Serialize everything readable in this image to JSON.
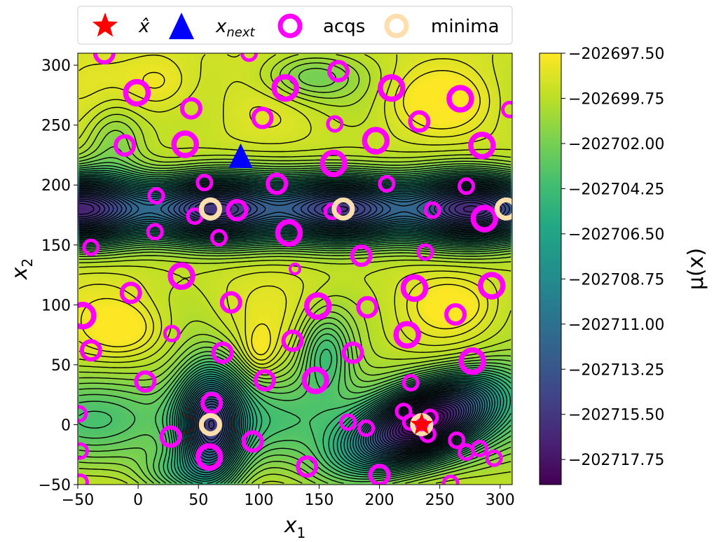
{
  "chart_data": {
    "type": "scatter",
    "background": "contour",
    "xlabel_var": "x",
    "xlabel_sub": "1",
    "ylabel_var": "x",
    "ylabel_sub": "2",
    "xlim": [
      -50,
      310
    ],
    "ylim": [
      -50,
      310
    ],
    "xticks": [
      -50,
      0,
      50,
      100,
      150,
      200,
      250,
      300
    ],
    "yticks": [
      -50,
      0,
      50,
      100,
      150,
      200,
      250,
      300
    ],
    "xtick_labels": [
      "−50",
      "0",
      "50",
      "100",
      "150",
      "200",
      "250",
      "300"
    ],
    "ytick_labels": [
      "−50",
      "0",
      "50",
      "100",
      "150",
      "200",
      "250",
      "300"
    ],
    "legend": {
      "placement": "top-center",
      "entries": [
        {
          "key": "xhat",
          "label": "x̂",
          "marker": "star",
          "color": "#ff0000"
        },
        {
          "key": "xnext",
          "label_var": "x",
          "label_sub": "next",
          "marker": "triangle",
          "color": "#0000ff"
        },
        {
          "key": "acqs",
          "label": "acqs",
          "marker": "ring",
          "color": "#ff00ff"
        },
        {
          "key": "minima",
          "label": "minima",
          "marker": "ring",
          "color": "#ffdead"
        }
      ]
    },
    "colorbar": {
      "label_fn": "μ(x)",
      "min": -202719.0,
      "max": -202697.5,
      "ticks": [
        -202697.5,
        -202699.75,
        -202702.0,
        -202704.25,
        -202706.5,
        -202708.75,
        -202711.0,
        -202713.25,
        -202715.5,
        -202717.75
      ],
      "tick_labels": [
        "−202697.50",
        "−202699.75",
        "−202702.00",
        "−202704.25",
        "−202706.50",
        "−202708.75",
        "−202711.00",
        "−202713.25",
        "−202715.50",
        "−202717.75"
      ]
    },
    "xhat": {
      "x": 235,
      "y": 0
    },
    "xnext": {
      "x": 85,
      "y": 223
    },
    "minima": [
      {
        "x": 60,
        "y": 180
      },
      {
        "x": 170,
        "y": 180
      },
      {
        "x": 305,
        "y": 180
      },
      {
        "x": 60,
        "y": 0
      },
      {
        "x": 235,
        "y": 0
      }
    ],
    "acqs": [
      {
        "x": -28,
        "y": 310,
        "s": "l"
      },
      {
        "x": 92,
        "y": 310,
        "s": "m"
      },
      {
        "x": 166,
        "y": 295,
        "s": "l"
      },
      {
        "x": -1,
        "y": 277,
        "s": "xl"
      },
      {
        "x": 122,
        "y": 281,
        "s": "xl"
      },
      {
        "x": 210,
        "y": 281,
        "s": "xl"
      },
      {
        "x": 267,
        "y": 272,
        "s": "xl"
      },
      {
        "x": 44,
        "y": 264,
        "s": "l"
      },
      {
        "x": 103,
        "y": 256,
        "s": "l"
      },
      {
        "x": 163,
        "y": 251,
        "s": "m"
      },
      {
        "x": 233,
        "y": 253,
        "s": "l"
      },
      {
        "x": 308,
        "y": 263,
        "s": "m"
      },
      {
        "x": -11,
        "y": 233,
        "s": "l"
      },
      {
        "x": 39,
        "y": 234,
        "s": "xl"
      },
      {
        "x": 197,
        "y": 237,
        "s": "xl"
      },
      {
        "x": 285,
        "y": 233,
        "s": "xl"
      },
      {
        "x": 162,
        "y": 218,
        "s": "xl"
      },
      {
        "x": 55,
        "y": 202,
        "s": "m"
      },
      {
        "x": 115,
        "y": 201,
        "s": "l"
      },
      {
        "x": 206,
        "y": 201,
        "s": "m"
      },
      {
        "x": 272,
        "y": 199,
        "s": "m"
      },
      {
        "x": 15,
        "y": 191,
        "s": "m"
      },
      {
        "x": 82,
        "y": 179,
        "s": "l"
      },
      {
        "x": 161,
        "y": 178,
        "s": "m"
      },
      {
        "x": 244,
        "y": 179,
        "s": "m"
      },
      {
        "x": 47,
        "y": 174,
        "s": "m"
      },
      {
        "x": 287,
        "y": 172,
        "s": "xl"
      },
      {
        "x": 14,
        "y": 161,
        "s": "m"
      },
      {
        "x": 125,
        "y": 160,
        "s": "xl"
      },
      {
        "x": 67,
        "y": 156,
        "s": "m"
      },
      {
        "x": -39,
        "y": 148,
        "s": "m"
      },
      {
        "x": 238,
        "y": 144,
        "s": "m"
      },
      {
        "x": 185,
        "y": 141,
        "s": "l"
      },
      {
        "x": 130,
        "y": 130,
        "s": "s"
      },
      {
        "x": 36,
        "y": 124,
        "s": "xl"
      },
      {
        "x": 229,
        "y": 114,
        "s": "xl"
      },
      {
        "x": 293,
        "y": 116,
        "s": "xl"
      },
      {
        "x": -6,
        "y": 110,
        "s": "l"
      },
      {
        "x": 77,
        "y": 102,
        "s": "l"
      },
      {
        "x": 149,
        "y": 99,
        "s": "xl"
      },
      {
        "x": 190,
        "y": 98,
        "s": "l"
      },
      {
        "x": -46,
        "y": 91,
        "s": "xl"
      },
      {
        "x": 263,
        "y": 92,
        "s": "l"
      },
      {
        "x": 28,
        "y": 76,
        "s": "m"
      },
      {
        "x": 223,
        "y": 75,
        "s": "xl"
      },
      {
        "x": 128,
        "y": 70,
        "s": "l"
      },
      {
        "x": -39,
        "y": 62,
        "s": "l"
      },
      {
        "x": 70,
        "y": 60,
        "s": "l"
      },
      {
        "x": 178,
        "y": 60,
        "s": "l"
      },
      {
        "x": 277,
        "y": 53,
        "s": "xl"
      },
      {
        "x": 6,
        "y": 36,
        "s": "l"
      },
      {
        "x": 105,
        "y": 37,
        "s": "l"
      },
      {
        "x": 147,
        "y": 37,
        "s": "xl"
      },
      {
        "x": 226,
        "y": 35,
        "s": "m"
      },
      {
        "x": 61,
        "y": 18,
        "s": "l"
      },
      {
        "x": 220,
        "y": 11,
        "s": "m"
      },
      {
        "x": 242,
        "y": 6,
        "s": "m"
      },
      {
        "x": -49,
        "y": 9,
        "s": "m"
      },
      {
        "x": 174,
        "y": 2,
        "s": "m"
      },
      {
        "x": 226,
        "y": 2,
        "s": "m"
      },
      {
        "x": 189,
        "y": -3,
        "s": "m"
      },
      {
        "x": 240,
        "y": -8,
        "s": "m"
      },
      {
        "x": 27,
        "y": -10,
        "s": "l"
      },
      {
        "x": 95,
        "y": -14,
        "s": "l"
      },
      {
        "x": 264,
        "y": -13,
        "s": "m"
      },
      {
        "x": -48,
        "y": -22,
        "s": "m"
      },
      {
        "x": 283,
        "y": -20,
        "s": "m"
      },
      {
        "x": 272,
        "y": -23,
        "s": "m"
      },
      {
        "x": 59,
        "y": -27,
        "s": "xl"
      },
      {
        "x": 295,
        "y": -28,
        "s": "m"
      },
      {
        "x": 140,
        "y": -35,
        "s": "l"
      },
      {
        "x": 200,
        "y": -42,
        "s": "l"
      },
      {
        "x": -48,
        "y": -48,
        "s": "m"
      },
      {
        "x": 259,
        "y": -49,
        "s": "m"
      }
    ],
    "surface": {
      "base": -202699.0,
      "bands": [
        {
          "center_y": 180,
          "width": 27,
          "depth": 15.0,
          "wx": 55,
          "var": 3.0
        },
        {
          "center_y": 5,
          "width": 40,
          "depth": 4.0,
          "wx": 0,
          "var": 0
        }
      ],
      "wells": [
        {
          "x": 60,
          "y": -2,
          "sx": 26,
          "sy": 48,
          "rot": 0,
          "depth": 13.0
        },
        {
          "x": 233,
          "y": 0,
          "sx": 65,
          "sy": 27,
          "rot": -0.42,
          "depth": 16.0
        },
        {
          "x": 155,
          "y": 60,
          "sx": 22,
          "sy": 34,
          "rot": 0,
          "depth": 4.5
        },
        {
          "x": 30,
          "y": -40,
          "sx": 30,
          "sy": 18,
          "rot": 0,
          "depth": 3.0
        },
        {
          "x": 140,
          "y": 290,
          "sx": 40,
          "sy": 20,
          "rot": 0,
          "depth": 3.0
        },
        {
          "x": -20,
          "y": 240,
          "sx": 25,
          "sy": 30,
          "rot": 0,
          "depth": 2.5
        }
      ],
      "bumps": [
        {
          "x": -10,
          "y": 80,
          "sx": 30,
          "sy": 22,
          "h": 1.8
        },
        {
          "x": 100,
          "y": 60,
          "sx": 14,
          "sy": 20,
          "h": 1.6
        },
        {
          "x": 20,
          "y": 285,
          "sx": 30,
          "sy": 25,
          "h": 1.6
        },
        {
          "x": 250,
          "y": 270,
          "sx": 40,
          "sy": 22,
          "h": 1.6
        },
        {
          "x": 260,
          "y": 100,
          "sx": 30,
          "sy": 18,
          "h": 1.4
        }
      ]
    }
  }
}
